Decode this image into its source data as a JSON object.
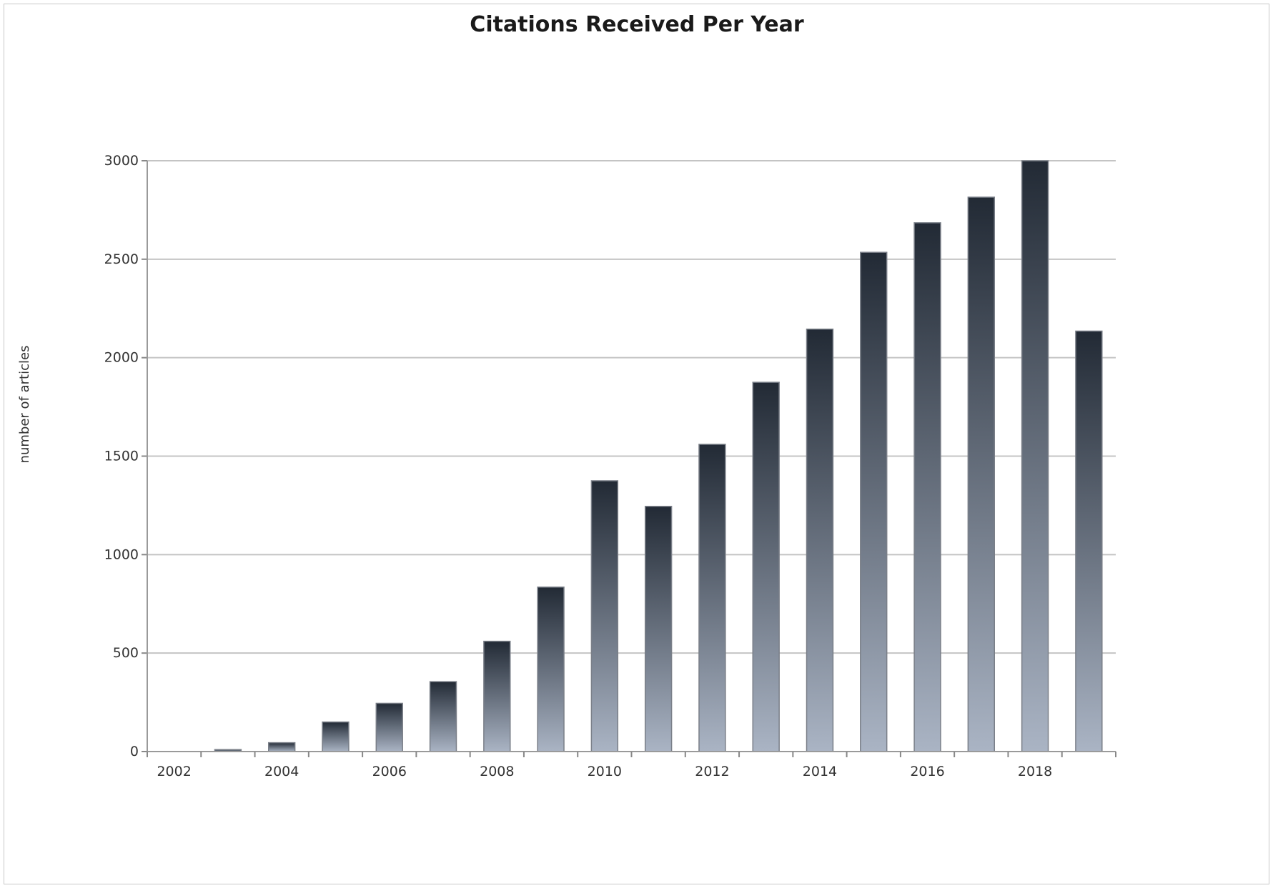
{
  "colors": {
    "bar_top": "#222a35",
    "bar_bottom": "#aab4c4",
    "grid": "#c4c4c4",
    "axis": "#9a9a9a"
  },
  "chart_data": {
    "type": "bar",
    "title": "Citations Received Per Year",
    "xlabel": "",
    "ylabel": "number of articles",
    "categories": [
      "2002",
      "2003",
      "2004",
      "2005",
      "2006",
      "2007",
      "2008",
      "2009",
      "2010",
      "2011",
      "2012",
      "2013",
      "2014",
      "2015",
      "2016",
      "2017",
      "2018",
      "2019"
    ],
    "x_tick_labels": [
      "2002",
      "",
      "2004",
      "",
      "2006",
      "",
      "2008",
      "",
      "2010",
      "",
      "2012",
      "",
      "2014",
      "",
      "2016",
      "",
      "2018",
      ""
    ],
    "values": [
      0,
      10,
      45,
      150,
      245,
      355,
      560,
      835,
      1375,
      1245,
      1560,
      1875,
      2145,
      2535,
      2685,
      2815,
      3000,
      2135
    ],
    "ylim": [
      0,
      3000
    ],
    "y_ticks": [
      0,
      500,
      1000,
      1500,
      2000,
      2500,
      3000
    ],
    "grid": true,
    "legend": "none"
  }
}
